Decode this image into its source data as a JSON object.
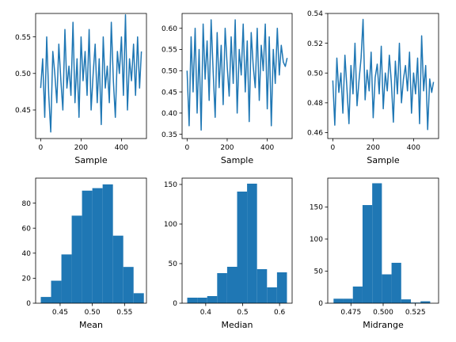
{
  "colors": {
    "series": "#1f77b4",
    "axis": "#000000"
  },
  "chart_data": [
    {
      "type": "line",
      "xlabel": "Sample",
      "ylabel": "",
      "xlim": [
        -25,
        524
      ],
      "ylim": [
        0.411,
        0.582
      ],
      "xticks": [
        0,
        200,
        400
      ],
      "yticks": [
        0.45,
        0.5,
        0.55
      ],
      "ytick_labels": [
        "0.45",
        "0.50",
        "0.55"
      ],
      "x": [
        0,
        10,
        20,
        30,
        40,
        50,
        60,
        70,
        80,
        90,
        100,
        110,
        120,
        130,
        140,
        150,
        160,
        170,
        180,
        190,
        200,
        210,
        220,
        230,
        240,
        250,
        260,
        270,
        280,
        290,
        300,
        310,
        320,
        330,
        340,
        350,
        360,
        370,
        380,
        390,
        400,
        410,
        420,
        430,
        440,
        450,
        460,
        470,
        480,
        490,
        499
      ],
      "y": [
        0.48,
        0.52,
        0.44,
        0.55,
        0.47,
        0.42,
        0.53,
        0.5,
        0.46,
        0.54,
        0.49,
        0.45,
        0.56,
        0.48,
        0.51,
        0.47,
        0.57,
        0.46,
        0.52,
        0.44,
        0.55,
        0.49,
        0.53,
        0.47,
        0.56,
        0.45,
        0.5,
        0.54,
        0.46,
        0.52,
        0.43,
        0.55,
        0.48,
        0.51,
        0.46,
        0.57,
        0.49,
        0.44,
        0.53,
        0.5,
        0.55,
        0.47,
        0.58,
        0.45,
        0.52,
        0.49,
        0.54,
        0.47,
        0.55,
        0.48,
        0.53
      ]
    },
    {
      "type": "line",
      "xlabel": "Sample",
      "ylabel": "",
      "xlim": [
        -25,
        524
      ],
      "ylim": [
        0.34,
        0.635
      ],
      "xticks": [
        0,
        200,
        400
      ],
      "yticks": [
        0.35,
        0.4,
        0.45,
        0.5,
        0.55,
        0.6
      ],
      "ytick_labels": [
        "0.35",
        "0.40",
        "0.45",
        "0.50",
        "0.55",
        "0.60"
      ],
      "x": [
        0,
        10,
        20,
        30,
        40,
        50,
        60,
        70,
        80,
        90,
        100,
        110,
        120,
        130,
        140,
        150,
        160,
        170,
        180,
        190,
        200,
        210,
        220,
        230,
        240,
        250,
        260,
        270,
        280,
        290,
        300,
        310,
        320,
        330,
        340,
        350,
        360,
        370,
        380,
        390,
        400,
        410,
        420,
        430,
        440,
        450,
        460,
        470,
        480,
        490,
        499
      ],
      "y": [
        0.5,
        0.37,
        0.58,
        0.45,
        0.6,
        0.4,
        0.55,
        0.36,
        0.61,
        0.48,
        0.57,
        0.43,
        0.62,
        0.5,
        0.39,
        0.59,
        0.46,
        0.56,
        0.42,
        0.6,
        0.51,
        0.44,
        0.58,
        0.47,
        0.62,
        0.4,
        0.55,
        0.49,
        0.61,
        0.45,
        0.57,
        0.38,
        0.59,
        0.51,
        0.46,
        0.6,
        0.43,
        0.56,
        0.5,
        0.61,
        0.41,
        0.58,
        0.37,
        0.55,
        0.47,
        0.6,
        0.49,
        0.56,
        0.52,
        0.51,
        0.53
      ]
    },
    {
      "type": "line",
      "xlabel": "Sample",
      "ylabel": "",
      "xlim": [
        -25,
        524
      ],
      "ylim": [
        0.456,
        0.54
      ],
      "xticks": [
        0,
        200,
        400
      ],
      "yticks": [
        0.46,
        0.48,
        0.5,
        0.52,
        0.54
      ],
      "ytick_labels": [
        "0.46",
        "0.48",
        "0.50",
        "0.52",
        "0.54"
      ],
      "x": [
        0,
        10,
        20,
        30,
        40,
        50,
        60,
        70,
        80,
        90,
        100,
        110,
        120,
        130,
        140,
        150,
        160,
        170,
        180,
        190,
        200,
        210,
        220,
        230,
        240,
        250,
        260,
        270,
        280,
        290,
        300,
        310,
        320,
        330,
        340,
        350,
        360,
        370,
        380,
        390,
        400,
        410,
        420,
        430,
        440,
        450,
        460,
        470,
        480,
        490,
        499
      ],
      "y": [
        0.495,
        0.465,
        0.51,
        0.487,
        0.5,
        0.473,
        0.512,
        0.49,
        0.466,
        0.505,
        0.486,
        0.52,
        0.478,
        0.495,
        0.51,
        0.536,
        0.482,
        0.502,
        0.488,
        0.514,
        0.47,
        0.497,
        0.506,
        0.486,
        0.518,
        0.476,
        0.5,
        0.488,
        0.512,
        0.494,
        0.467,
        0.508,
        0.486,
        0.52,
        0.48,
        0.496,
        0.505,
        0.488,
        0.514,
        0.473,
        0.5,
        0.486,
        0.51,
        0.466,
        0.525,
        0.488,
        0.505,
        0.462,
        0.496,
        0.487,
        0.494
      ]
    },
    {
      "type": "bar",
      "xlabel": "Mean",
      "ylabel": "",
      "xlim": [
        0.412,
        0.584
      ],
      "ylim": [
        0,
        100
      ],
      "xticks": [
        0.45,
        0.5,
        0.55
      ],
      "xtick_labels": [
        "0.45",
        "0.50",
        "0.55"
      ],
      "yticks": [
        0,
        20,
        40,
        60,
        80
      ],
      "bin_edges": [
        0.42,
        0.436,
        0.452,
        0.468,
        0.484,
        0.5,
        0.516,
        0.532,
        0.548,
        0.564,
        0.58
      ],
      "values": [
        5,
        18,
        39,
        70,
        90,
        92,
        95,
        54,
        29,
        8
      ]
    },
    {
      "type": "bar",
      "xlabel": "Median",
      "ylabel": "",
      "xlim": [
        0.336,
        0.634
      ],
      "ylim": [
        0,
        158
      ],
      "xticks": [
        0.4,
        0.5,
        0.6
      ],
      "xtick_labels": [
        "0.4",
        "0.5",
        "0.6"
      ],
      "yticks": [
        0,
        50,
        100,
        150
      ],
      "bin_edges": [
        0.35,
        0.377,
        0.404,
        0.431,
        0.458,
        0.485,
        0.512,
        0.539,
        0.566,
        0.593,
        0.62
      ],
      "values": [
        7,
        7,
        9,
        38,
        46,
        141,
        151,
        43,
        20,
        39
      ]
    },
    {
      "type": "bar",
      "xlabel": "Midrange",
      "ylabel": "",
      "xlim": [
        0.457,
        0.543
      ],
      "ylim": [
        0,
        195
      ],
      "xticks": [
        0.475,
        0.5,
        0.525
      ],
      "xtick_labels": [
        "0.475",
        "0.500",
        "0.525"
      ],
      "yticks": [
        0,
        50,
        100,
        150
      ],
      "bin_edges": [
        0.4615,
        0.469,
        0.4765,
        0.484,
        0.4915,
        0.499,
        0.5065,
        0.514,
        0.5215,
        0.529,
        0.5365
      ],
      "values": [
        7,
        7,
        26,
        153,
        187,
        45,
        63,
        6,
        1,
        3
      ]
    }
  ]
}
